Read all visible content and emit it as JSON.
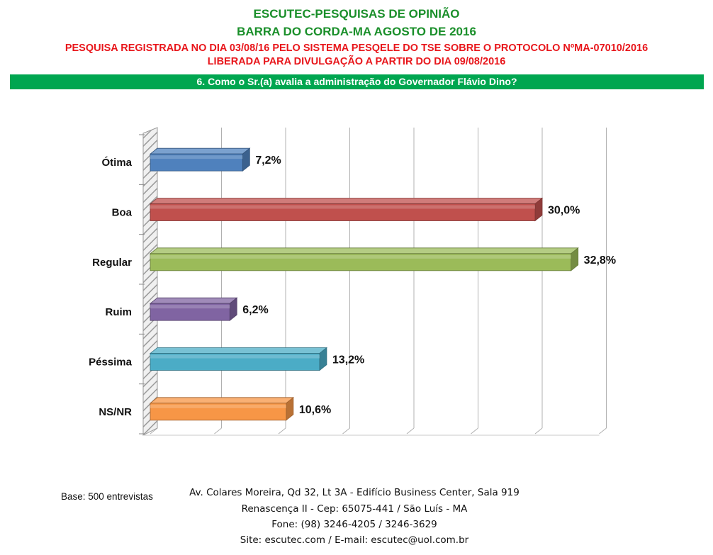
{
  "header": {
    "line1": "ESCUTEC-PESQUISAS DE OPINIÃO",
    "line2": "BARRA DO CORDA-MA AGOSTO DE 2016",
    "line3": "PESQUISA REGISTRADA NO DIA 03/08/16 PELO SISTEMA PESQELE DO TSE SOBRE O PROTOCOLO NºMA-07010/2016",
    "line4": "LIBERADA PARA DIVULGAÇÃO A PARTIR DO DIA 09/08/2016"
  },
  "question": "6. Como o Sr.(a) avalia a administração do Governador Flávio Dino?",
  "colors": {
    "title_green": "#1a8f2a",
    "title_red": "#e8161b",
    "question_bar": "#00a650"
  },
  "chart_data": {
    "type": "bar",
    "orientation": "horizontal",
    "categories": [
      "Ótima",
      "Boa",
      "Regular",
      "Ruim",
      "Péssima",
      "NS/NR"
    ],
    "values": [
      7.2,
      30.0,
      32.8,
      6.2,
      13.2,
      10.6
    ],
    "value_labels": [
      "7,2%",
      "30,0%",
      "32,8%",
      "6,2%",
      "13,2%",
      "10,6%"
    ],
    "colors": [
      "#4f81bd",
      "#c0504d",
      "#9bbb59",
      "#8064a2",
      "#4bacc6",
      "#f79646"
    ],
    "xlim": [
      0,
      35
    ],
    "gridlines": "vertical",
    "style": "3d"
  },
  "footer": {
    "base": "Base: 500 entrevistas",
    "address1": "Av. Colares Moreira, Qd 32, Lt 3A - Edifício Business Center, Sala 919",
    "address2": "Renascença II - Cep: 65075-441 / São Luís - MA",
    "phone": "Fone: (98) 3246-4205 / 3246-3629",
    "site": "Site: escutec.com / E-mail: escutec@uol.com.br"
  }
}
